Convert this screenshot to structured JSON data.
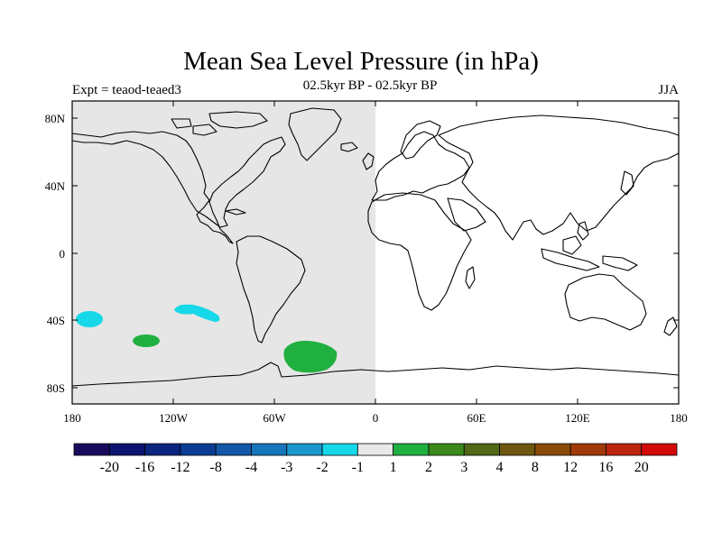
{
  "title": "Mean Sea Level Pressure (in hPa)",
  "left_label": "Expt = teaod-teaed3",
  "center_label": "02.5kyr BP - 02.5kyr BP",
  "right_label": "JJA",
  "lat_ticks": [
    "80N",
    "40N",
    "0",
    "40S",
    "80S"
  ],
  "lon_ticks": [
    "180",
    "120W",
    "60W",
    "0",
    "60E",
    "120E",
    "180"
  ],
  "legend": {
    "colors": [
      "#1a0a5c",
      "#0c1470",
      "#0a2480",
      "#0d3c94",
      "#1258a8",
      "#1676bc",
      "#1a98cc",
      "#16d8e8",
      "#e8e8e8",
      "#20b040",
      "#3c8a1c",
      "#506818",
      "#6e5810",
      "#8a4c08",
      "#a03a08",
      "#bc2410",
      "#d40a0a"
    ],
    "labels": [
      "-20",
      "-16",
      "-12",
      "-8",
      "-4",
      "-3",
      "-2",
      "-1",
      "1",
      "2",
      "3",
      "4",
      "8",
      "12",
      "16",
      "20"
    ]
  },
  "colors": {
    "shade_gray": "#e6e6e6",
    "cyan_anomaly": "#16d8e8",
    "green_anomaly": "#20b040"
  }
}
